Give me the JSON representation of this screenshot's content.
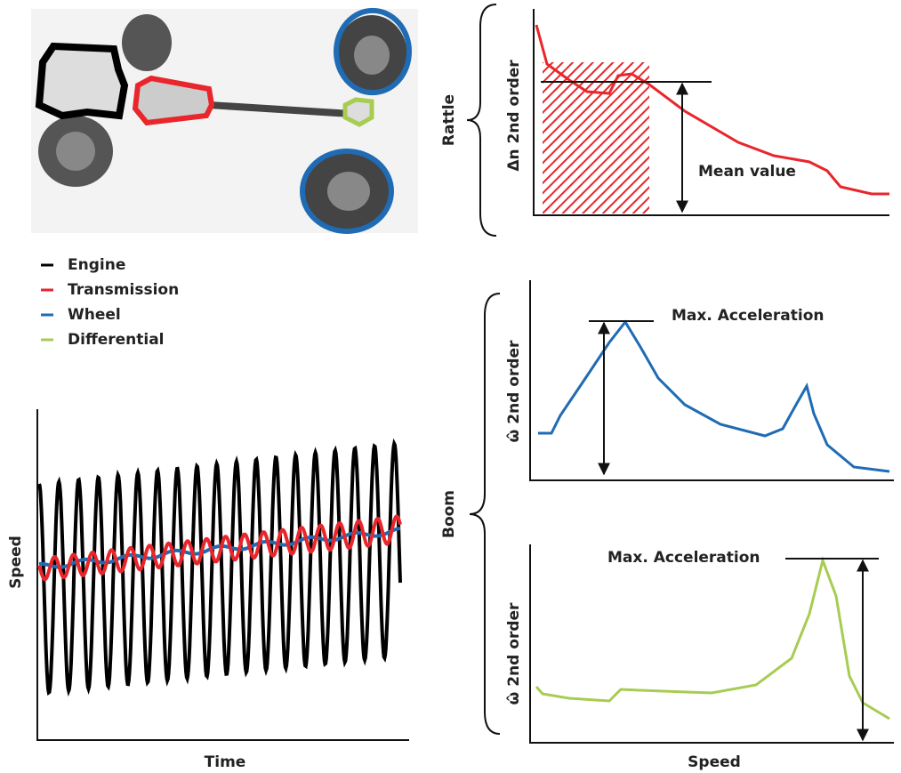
{
  "legend": {
    "items": [
      {
        "label": "Engine",
        "color": "#000000"
      },
      {
        "label": "Transmission",
        "color": "#e8262b"
      },
      {
        "label": "Wheel",
        "color": "#1f6bb4"
      },
      {
        "label": "Differential",
        "color": "#a8cc52"
      }
    ]
  },
  "time_chart": {
    "y_label": "Speed",
    "x_label": "Time"
  },
  "rattle_panel": {
    "bracket_label": "Rattle",
    "y_label": "Δn 2nd order",
    "annotation": "Mean value"
  },
  "boom_panel": {
    "bracket_label": "Boom",
    "wheel_chart": {
      "y_label": "ω̂ 2nd order",
      "annotation": "Max. Acceleration"
    },
    "differential_chart": {
      "y_label": "ω̂ 2nd order",
      "annotation": "Max. Acceleration"
    },
    "x_label": "Speed"
  }
}
